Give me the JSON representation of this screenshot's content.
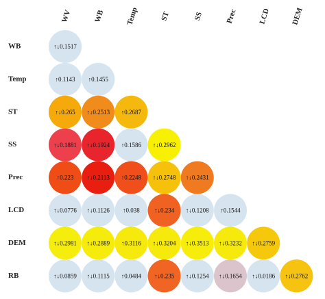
{
  "chart_data": {
    "type": "correlation-matrix",
    "x": [
      "WV",
      "WB",
      "Temp",
      "ST",
      "SS",
      "Prec",
      "LCD",
      "DEM"
    ],
    "y": [
      "WB",
      "Temp",
      "ST",
      "SS",
      "Prec",
      "LCD",
      "DEM",
      "RB"
    ],
    "values": [
      [
        0.1517
      ],
      [
        0.1143,
        0.1455
      ],
      [
        0.265,
        0.2513,
        0.2687
      ],
      [
        0.1881,
        0.1924,
        0.1586,
        0.2962
      ],
      [
        0.223,
        0.2113,
        0.2248,
        0.2748,
        0.2431
      ],
      [
        0.0776,
        0.1126,
        0.038,
        0.234,
        0.1208,
        0.1544
      ],
      [
        0.2981,
        0.2889,
        0.3116,
        0.3204,
        0.3513,
        0.3232,
        0.2759
      ],
      [
        0.0859,
        0.1115,
        0.0484,
        0.235,
        0.1254,
        0.1654,
        0.0186,
        0.2762
      ]
    ],
    "value_labels": [
      [
        "↑↓0.1517"
      ],
      [
        "↑0.1143",
        "↑0.1455"
      ],
      [
        "↑↓0.265",
        "↑↓0.2513",
        "↑0.2687"
      ],
      [
        "↑↓0.1881",
        "↑↓0.1924",
        "↑0.1586",
        "↑↓0.2962"
      ],
      [
        "↑0.223",
        "↑↓0.2113",
        "↑0.2248",
        "↑↓0.2748",
        "↑↓0.2431"
      ],
      [
        "↑↓0.0776",
        "↑↓0.1126",
        "↑0.038",
        "↑↓0.234",
        "↑↓0.1208",
        "↑0.1544"
      ],
      [
        "↑↓0.2981",
        "↑↓0.2889",
        "↑0.3116",
        "↑↓0.3204",
        "↑↓0.3513",
        "↑↓0.3232",
        "↑↓0.2759"
      ],
      [
        "↑↓0.0859",
        "↑↓0.1115",
        "↑0.0484",
        "↑↓0.235",
        "↑↓0.1254",
        "↑↓0.1654",
        "↑↓0.0186",
        "↑↓0.2762"
      ]
    ],
    "colors": [
      [
        "#d6e4f0"
      ],
      [
        "#d6e4f0",
        "#d6e4f0"
      ],
      [
        "#f5a90a",
        "#f08c1c",
        "#f5b90e"
      ],
      [
        "#ee3f4c",
        "#e8242c",
        "#d6e4f0",
        "#f7f000"
      ],
      [
        "#f04c16",
        "#e81e10",
        "#f04e1a",
        "#f6c10a",
        "#f07a20"
      ],
      [
        "#d6e4f0",
        "#d6e4f0",
        "#d6e4f0",
        "#f06222",
        "#d6e4f0",
        "#d6e4f0"
      ],
      [
        "#f5ee0c",
        "#f5ec0c",
        "#f5ea0c",
        "#f5ea0c",
        "#f6ee0a",
        "#f5ea0c",
        "#f6c80c"
      ],
      [
        "#d6e4f0",
        "#d6e4f0",
        "#d6e4f0",
        "#f06424",
        "#d6e4f0",
        "#dcc4cc",
        "#d6e4f0",
        "#f6c410"
      ]
    ]
  }
}
